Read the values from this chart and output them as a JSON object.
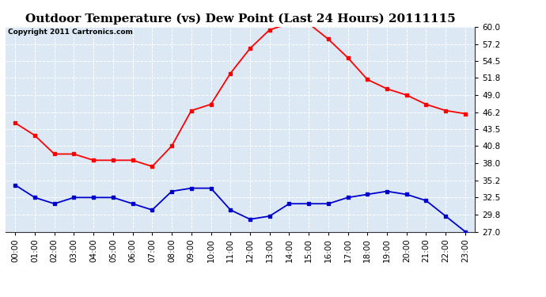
{
  "title": "Outdoor Temperature (vs) Dew Point (Last 24 Hours) 20111115",
  "copyright": "Copyright 2011 Cartronics.com",
  "hours": [
    "00:00",
    "01:00",
    "02:00",
    "03:00",
    "04:00",
    "05:00",
    "06:00",
    "07:00",
    "08:00",
    "09:00",
    "10:00",
    "11:00",
    "12:00",
    "13:00",
    "14:00",
    "15:00",
    "16:00",
    "17:00",
    "18:00",
    "19:00",
    "20:00",
    "21:00",
    "22:00",
    "23:00"
  ],
  "temp": [
    44.5,
    42.5,
    39.5,
    39.5,
    38.5,
    38.5,
    38.5,
    37.5,
    40.8,
    46.5,
    47.5,
    52.5,
    56.5,
    59.5,
    60.5,
    60.5,
    58.0,
    55.0,
    51.5,
    50.0,
    49.0,
    47.5,
    46.5,
    46.0
  ],
  "dewpoint": [
    34.5,
    32.5,
    31.5,
    32.5,
    32.5,
    32.5,
    31.5,
    30.5,
    33.5,
    34.0,
    34.0,
    30.5,
    29.0,
    29.5,
    31.5,
    31.5,
    31.5,
    32.5,
    33.0,
    33.5,
    33.0,
    32.0,
    29.5,
    27.0
  ],
  "temp_color": "#ff0000",
  "dew_color": "#0000cc",
  "bg_color": "#ffffff",
  "plot_bg": "#dce9f5",
  "grid_color": "#aaaaaa",
  "grid_color2": "#ffffff",
  "ylim": [
    27.0,
    60.0
  ],
  "yticks": [
    27.0,
    29.8,
    32.5,
    35.2,
    38.0,
    40.8,
    43.5,
    46.2,
    49.0,
    51.8,
    54.5,
    57.2,
    60.0
  ],
  "title_fontsize": 11,
  "copyright_fontsize": 6.5,
  "tick_fontsize": 7.5
}
